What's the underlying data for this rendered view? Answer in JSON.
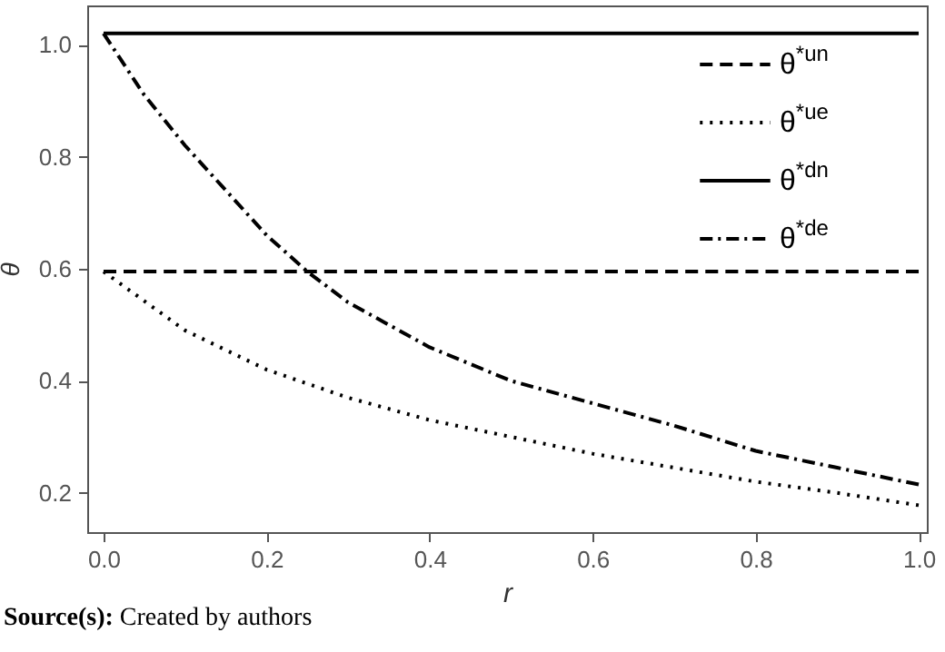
{
  "chart_data": {
    "type": "line",
    "xlabel": "r",
    "ylabel": "θ",
    "xlim": [
      -0.02,
      1.01
    ],
    "ylim": [
      0.13,
      1.07
    ],
    "xticks": [
      {
        "value": 0,
        "label": "0.0"
      },
      0.2,
      0.4,
      0.6,
      0.8,
      {
        "value": 1,
        "label": "1.0"
      }
    ],
    "yticks": [
      0.2,
      0.4,
      0.6,
      0.8,
      {
        "value": 1,
        "label": "1.0"
      }
    ],
    "grid": false,
    "legend": "top right",
    "marker": "none",
    "annotations": [
      "Source(s): Created by authors"
    ],
    "series": [
      {
        "name": "θ$^{*un}$",
        "color": "#000000",
        "line_style": "dashed",
        "x": [
          0,
          1
        ],
        "values": [
          0.595,
          0.595
        ]
      },
      {
        "name": "θ$^{*ue}$",
        "color": "#000000",
        "line_style": "dotted",
        "x": [
          0,
          0.1,
          0.2,
          0.3,
          0.4,
          0.5,
          0.6,
          0.7,
          0.8,
          0.9,
          1.0
        ],
        "values": [
          0.595,
          0.49,
          0.42,
          0.37,
          0.33,
          0.3,
          0.27,
          0.245,
          0.22,
          0.2,
          0.178
        ]
      },
      {
        "name": "θ$^{*dn}$",
        "color": "#000000",
        "line_style": "solid",
        "x": [
          0,
          1
        ],
        "values": [
          1.02,
          1.02
        ]
      },
      {
        "name": "θ$^{*de}$",
        "color": "#000000",
        "line_style": "dashdot",
        "x": [
          0,
          0.05,
          0.1,
          0.2,
          0.25,
          0.3,
          0.4,
          0.5,
          0.6,
          0.7,
          0.8,
          0.9,
          1.0
        ],
        "values": [
          1.02,
          0.91,
          0.82,
          0.66,
          0.595,
          0.54,
          0.46,
          0.4,
          0.36,
          0.32,
          0.275,
          0.245,
          0.215
        ]
      }
    ]
  }
}
